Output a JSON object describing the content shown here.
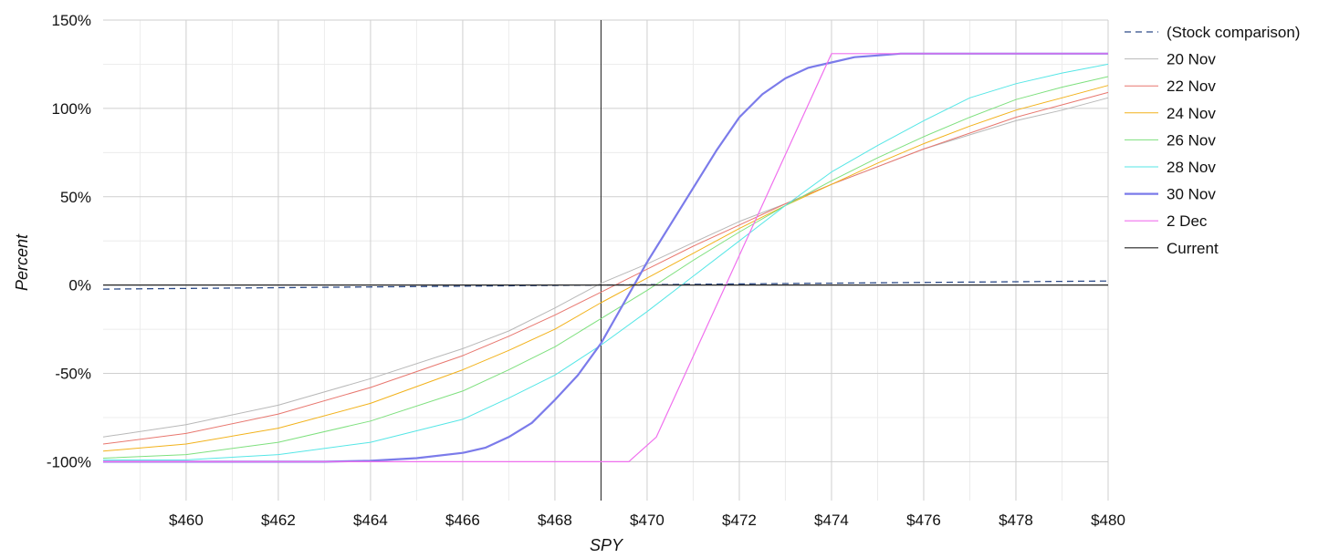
{
  "chart_data": {
    "type": "line",
    "title": "",
    "xlabel": "SPY",
    "ylabel": "Percent",
    "xlim": [
      458.2,
      480
    ],
    "ylim": [
      -122,
      150
    ],
    "x_ticks": [
      460,
      462,
      464,
      466,
      468,
      470,
      472,
      474,
      476,
      478,
      480
    ],
    "x_tick_labels": [
      "$460",
      "$462",
      "$464",
      "$466",
      "$468",
      "$470",
      "$472",
      "$474",
      "$476",
      "$478",
      "$480"
    ],
    "y_ticks": [
      150,
      100,
      50,
      0,
      -50,
      -100
    ],
    "y_tick_labels": [
      "150%",
      "100%",
      "50%",
      "0%",
      "-50%",
      "-100%"
    ],
    "grid": true,
    "legend_position": "right",
    "current_x": 469,
    "series": [
      {
        "name": "(Stock comparison)",
        "color": "#2c4a87",
        "style": "dashed",
        "width": 1.3,
        "x": [
          458.2,
          469,
          480
        ],
        "y": [
          -2.3,
          0,
          2.3
        ]
      },
      {
        "name": "20 Nov",
        "color": "#b8b8b8",
        "style": "solid",
        "width": 1,
        "x": [
          458.2,
          460,
          462,
          464,
          466,
          467,
          468,
          469,
          470,
          471,
          472,
          473,
          474,
          475,
          476,
          477,
          478,
          479,
          480
        ],
        "y": [
          -86,
          -79,
          -68,
          -53,
          -36,
          -26,
          -13,
          1,
          12,
          24,
          36,
          46,
          57,
          67,
          77,
          85,
          93,
          99,
          106
        ]
      },
      {
        "name": "22 Nov",
        "color": "#e8776f",
        "style": "solid",
        "width": 1,
        "x": [
          458.2,
          460,
          462,
          464,
          466,
          467,
          468,
          469,
          470,
          471,
          472,
          473,
          474,
          475,
          476,
          477,
          478,
          479,
          480
        ],
        "y": [
          -90,
          -84,
          -73,
          -58,
          -40,
          -29,
          -17,
          -4,
          9,
          22,
          34,
          46,
          57,
          67,
          77,
          86,
          95,
          102,
          109
        ]
      },
      {
        "name": "24 Nov",
        "color": "#f2b21b",
        "style": "solid",
        "width": 1,
        "x": [
          458.2,
          460,
          462,
          464,
          466,
          467,
          468,
          469,
          470,
          471,
          472,
          473,
          474,
          475,
          476,
          477,
          478,
          479,
          480
        ],
        "y": [
          -94,
          -90,
          -81,
          -67,
          -48,
          -37,
          -25,
          -10,
          4,
          18,
          32,
          45,
          57,
          69,
          80,
          90,
          99,
          106,
          113
        ]
      },
      {
        "name": "26 Nov",
        "color": "#7ee07e",
        "style": "solid",
        "width": 1,
        "x": [
          458.2,
          460,
          462,
          464,
          466,
          467,
          468,
          469,
          470,
          471,
          472,
          473,
          474,
          475,
          476,
          477,
          478,
          479,
          480
        ],
        "y": [
          -98,
          -96,
          -89,
          -77,
          -60,
          -48,
          -35,
          -19,
          -3,
          14,
          30,
          45,
          59,
          72,
          84,
          95,
          105,
          112,
          118
        ]
      },
      {
        "name": "28 Nov",
        "color": "#55e6e6",
        "style": "solid",
        "width": 1,
        "x": [
          458.2,
          460,
          462,
          464,
          466,
          467,
          468,
          469,
          470,
          471,
          472,
          473,
          474,
          475,
          476,
          477,
          478,
          479,
          480
        ],
        "y": [
          -99,
          -99,
          -96,
          -89,
          -76,
          -64,
          -51,
          -34,
          -15,
          5,
          25,
          45,
          64,
          79,
          93,
          106,
          114,
          120,
          125
        ]
      },
      {
        "name": "30 Nov",
        "color": "#7b7bea",
        "style": "solid",
        "width": 2.2,
        "x": [
          458.2,
          460,
          462,
          463,
          464,
          465,
          466,
          466.5,
          467,
          467.5,
          468,
          468.5,
          469,
          469.5,
          470,
          470.5,
          471,
          471.5,
          472,
          472.5,
          473,
          473.5,
          474,
          474.5,
          475,
          475.5,
          476,
          476.5,
          477,
          477.5,
          478,
          478.5,
          479,
          479.5,
          480
        ],
        "y": [
          -100,
          -100,
          -100,
          -100,
          -99.5,
          -98,
          -95,
          -92,
          -86,
          -78,
          -65,
          -51,
          -33,
          -10,
          13,
          34,
          55,
          76,
          95,
          108,
          117,
          123,
          126,
          129,
          130,
          131,
          131,
          131,
          131,
          131,
          131,
          131,
          131,
          131,
          131
        ]
      },
      {
        "name": "2 Dec",
        "color": "#f070ee",
        "style": "solid",
        "width": 1.2,
        "x": [
          458.2,
          469.6,
          470.2,
          474,
          480
        ],
        "y": [
          -100,
          -100,
          -86,
          131,
          131
        ]
      },
      {
        "name": "Current",
        "color": "#222222",
        "style": "solid",
        "width": 1.2,
        "x": [
          458.2,
          480
        ],
        "y": [
          0,
          0
        ]
      }
    ]
  }
}
